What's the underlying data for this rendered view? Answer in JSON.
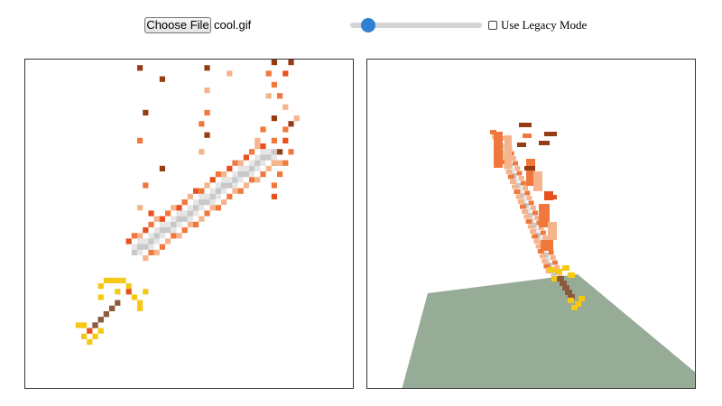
{
  "toolbar": {
    "file_button_label": "Choose File",
    "file_name": "cool.gif",
    "slider_value": 0.14,
    "legacy_checked": false,
    "legacy_label": "Use Legacy Mode"
  },
  "colors": {
    "sword_blade_light": "#e6e6e6",
    "sword_blade_dark": "#c8c8c8",
    "flame_orange": "#f0783c",
    "flame_red": "#e8501e",
    "flame_peach": "#f5b48c",
    "flame_brown": "#963c14",
    "hilt_yellow": "#f5c814",
    "handle_brown": "#8c5a3c",
    "ground": "#97ac96",
    "slider_accent": "#2f80d1"
  },
  "views": {
    "left": "2d-pixel-view",
    "right": "3d-voxel-view"
  }
}
